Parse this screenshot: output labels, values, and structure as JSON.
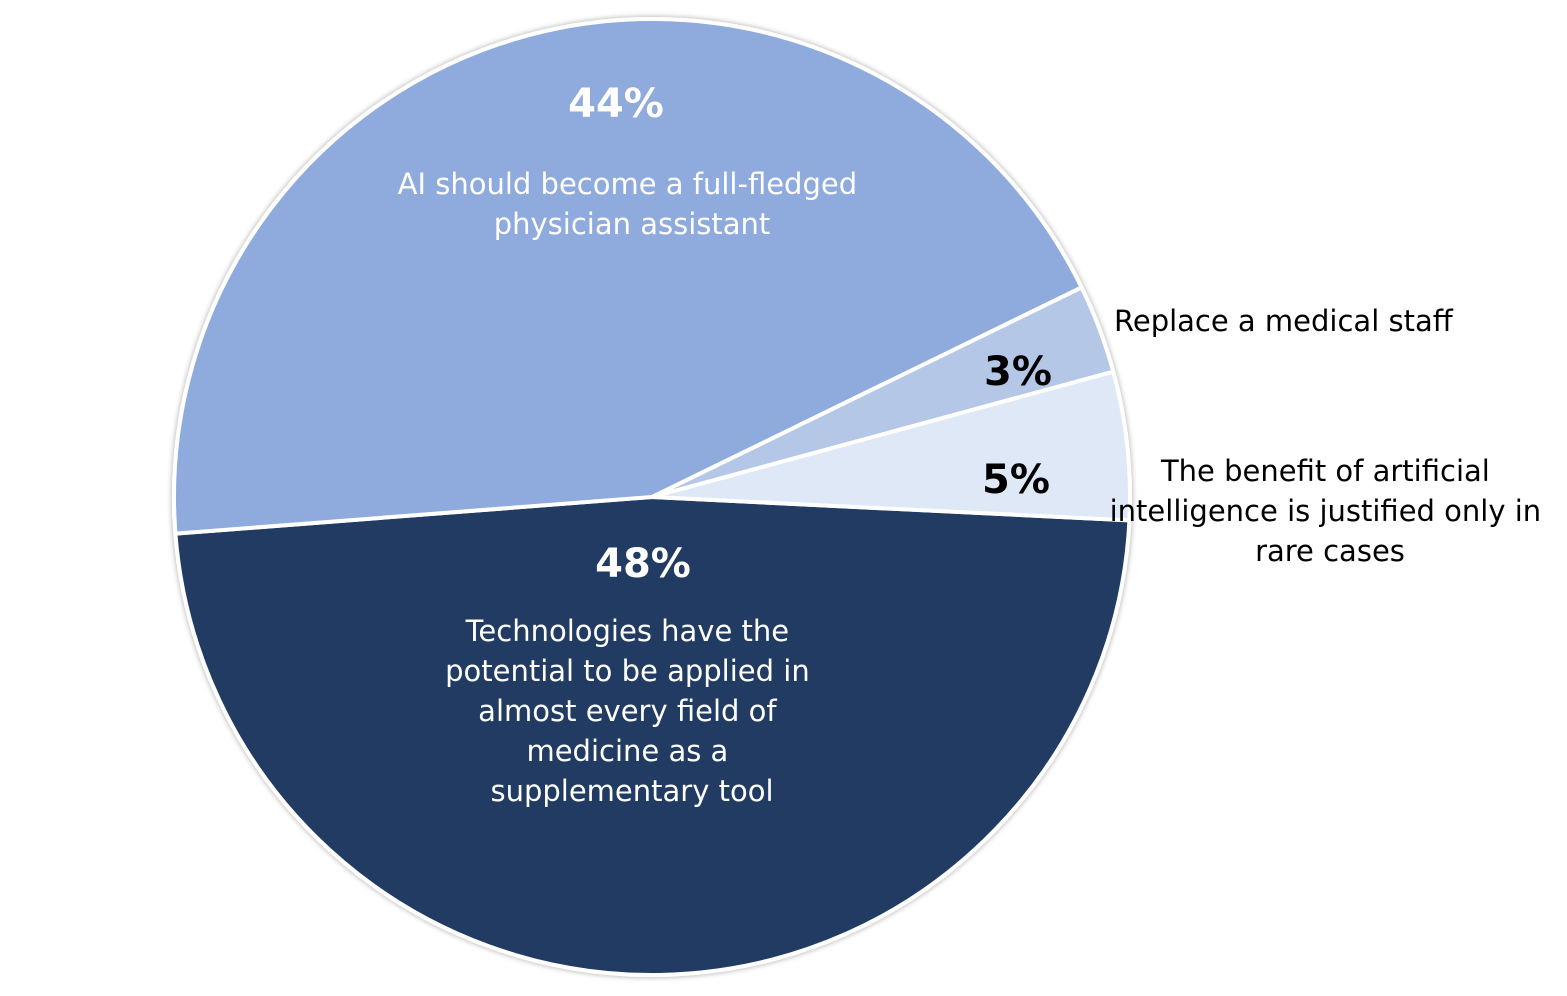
{
  "chart_data": {
    "type": "pie",
    "title": "",
    "slices": [
      {
        "name": "Technologies have the potential to be applied in almost every field of medicine as a supplementary tool",
        "value": 48,
        "value_label": "48%",
        "label_lines": [
          "Technologies have the",
          "potential to be applied in",
          "almost every field of",
          "medicine as a",
          "supplementary tool"
        ],
        "color": "#223A64",
        "text_color": "#ffffff",
        "label_position": "inside"
      },
      {
        "name": "AI should become a full-fledged physician assistant",
        "value": 44,
        "value_label": "44%",
        "label_lines": [
          "AI should become a full-fledged",
          "physician assistant"
        ],
        "color": "#8FAADC",
        "text_color": "#ffffff",
        "label_position": "inside"
      },
      {
        "name": "Replace a medical staff",
        "value": 3,
        "value_label": "3%",
        "label_lines": [
          "Replace a medical staff"
        ],
        "color": "#B4C7E7",
        "text_color": "#000000",
        "label_position": "outside"
      },
      {
        "name": "The benefit of artificial intelligence is justified only in rare cases",
        "value": 5,
        "value_label": "5%",
        "label_lines": [
          "The benefit of artificial",
          "intelligence is justified only in",
          "rare cases"
        ],
        "color": "#DEE8F6",
        "text_color": "#000000",
        "label_position": "outside"
      }
    ]
  }
}
